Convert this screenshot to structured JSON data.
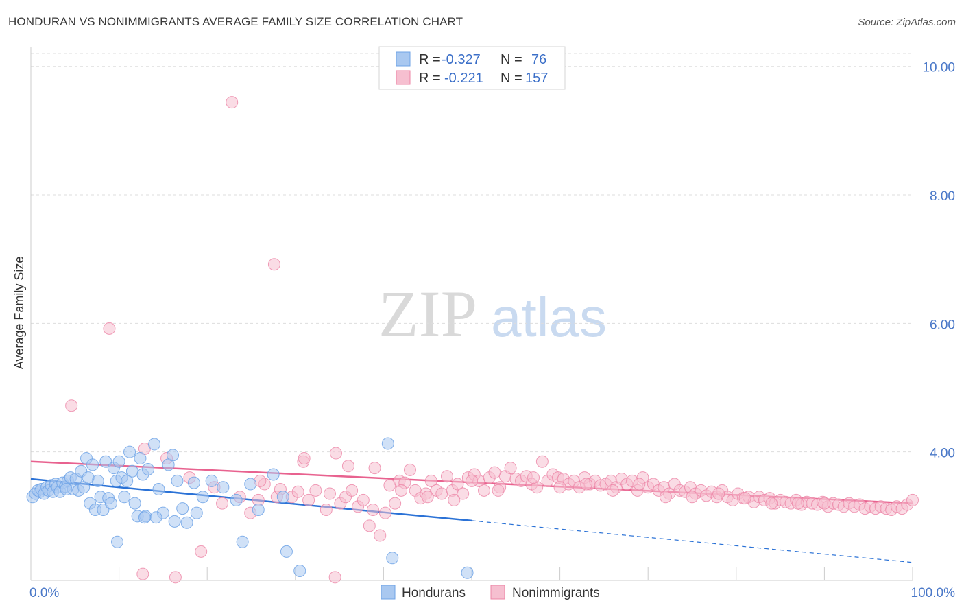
{
  "title": "HONDURAN VS NONIMMIGRANTS AVERAGE FAMILY SIZE CORRELATION CHART",
  "source": "Source: ZipAtlas.com",
  "watermark": {
    "zip": "ZIP",
    "atlas": "atlas"
  },
  "colors": {
    "blue": "#6fa3e6",
    "blue_fill": "#a9c8f0",
    "blue_line": "#2b72d6",
    "pink": "#ec85a6",
    "pink_fill": "#f6bfd0",
    "pink_line": "#e8628f"
  },
  "legend": {
    "rows": [
      {
        "r_label": "R =",
        "r_value": "-0.327",
        "n_label": "N =",
        "n_value": "76"
      },
      {
        "r_label": "R =",
        "r_value": "-0.221",
        "n_label": "N =",
        "n_value": "157"
      }
    ]
  },
  "bottom_legend": [
    "Hondurans",
    "Nonimmigrants"
  ],
  "chart_data": {
    "type": "scatter",
    "title": "HONDURAN VS NONIMMIGRANTS AVERAGE FAMILY SIZE CORRELATION CHART",
    "xlabel": "",
    "ylabel": "Average Family Size",
    "xlim": [
      0,
      100
    ],
    "ylim": [
      2.0,
      10.2
    ],
    "x_tick_labels": [
      "0.0%",
      "100.0%"
    ],
    "y_ticks": [
      4,
      6,
      8,
      10
    ],
    "y_tick_labels": [
      "4.00",
      "6.00",
      "8.00",
      "10.00"
    ],
    "legend_position": "top-center",
    "series": [
      {
        "name": "Hondurans",
        "r": -0.327,
        "n": 76,
        "trend": {
          "x0": 0,
          "y0": 3.58,
          "x1": 50,
          "y1": 2.93,
          "dashed_to_x": 100,
          "dashed_to_y": 2.28
        },
        "points": [
          [
            0.2,
            3.3
          ],
          [
            0.5,
            3.35
          ],
          [
            0.8,
            3.4
          ],
          [
            1.0,
            3.38
          ],
          [
            1.2,
            3.42
          ],
          [
            1.5,
            3.35
          ],
          [
            1.8,
            3.45
          ],
          [
            2.0,
            3.4
          ],
          [
            2.3,
            3.48
          ],
          [
            2.5,
            3.38
          ],
          [
            2.8,
            3.5
          ],
          [
            3.0,
            3.45
          ],
          [
            3.3,
            3.38
          ],
          [
            3.6,
            3.52
          ],
          [
            3.9,
            3.46
          ],
          [
            4.2,
            3.55
          ],
          [
            4.5,
            3.6
          ],
          [
            4.8,
            3.42
          ],
          [
            5.1,
            3.58
          ],
          [
            5.4,
            3.4
          ],
          [
            5.7,
            3.7
          ],
          [
            6.0,
            3.45
          ],
          [
            6.3,
            3.9
          ],
          [
            6.7,
            3.2
          ],
          [
            7.0,
            3.8
          ],
          [
            7.3,
            3.1
          ],
          [
            7.6,
            3.55
          ],
          [
            7.9,
            3.3
          ],
          [
            8.2,
            3.1
          ],
          [
            8.5,
            3.85
          ],
          [
            8.8,
            3.28
          ],
          [
            9.1,
            3.2
          ],
          [
            9.4,
            3.75
          ],
          [
            9.7,
            3.55
          ],
          [
            10.0,
            3.85
          ],
          [
            10.3,
            3.6
          ],
          [
            10.6,
            3.3
          ],
          [
            10.9,
            3.55
          ],
          [
            11.2,
            4.0
          ],
          [
            11.5,
            3.7
          ],
          [
            11.8,
            3.2
          ],
          [
            12.1,
            3.0
          ],
          [
            12.4,
            3.9
          ],
          [
            12.7,
            3.65
          ],
          [
            13.0,
            3.0
          ],
          [
            13.3,
            3.73
          ],
          [
            14.0,
            4.12
          ],
          [
            14.5,
            3.42
          ],
          [
            15.0,
            3.05
          ],
          [
            15.6,
            3.8
          ],
          [
            16.1,
            3.95
          ],
          [
            16.6,
            3.55
          ],
          [
            17.2,
            3.12
          ],
          [
            17.7,
            2.9
          ],
          [
            18.5,
            3.52
          ],
          [
            19.5,
            3.3
          ],
          [
            21.8,
            3.45
          ],
          [
            23.3,
            3.25
          ],
          [
            24.0,
            2.6
          ],
          [
            25.8,
            3.1
          ],
          [
            27.5,
            3.65
          ],
          [
            29.0,
            2.45
          ],
          [
            30.5,
            2.15
          ],
          [
            40.5,
            4.13
          ],
          [
            41.0,
            2.35
          ],
          [
            49.5,
            2.12
          ],
          [
            4.0,
            3.42
          ],
          [
            6.5,
            3.6
          ],
          [
            9.8,
            2.6
          ],
          [
            12.9,
            2.98
          ],
          [
            14.2,
            2.98
          ],
          [
            16.3,
            2.92
          ],
          [
            18.8,
            3.05
          ],
          [
            20.5,
            3.55
          ],
          [
            24.9,
            3.5
          ],
          [
            28.6,
            3.3
          ]
        ]
      },
      {
        "name": "Nonimmigrants",
        "r": -0.221,
        "n": 157,
        "trend": {
          "x0": 0,
          "y0": 3.85,
          "x1": 100,
          "y1": 3.2
        },
        "points": [
          [
            4.6,
            4.72
          ],
          [
            8.9,
            5.92
          ],
          [
            12.7,
            2.1
          ],
          [
            12.9,
            4.05
          ],
          [
            16.4,
            2.05
          ],
          [
            19.3,
            2.45
          ],
          [
            21.7,
            3.2
          ],
          [
            22.8,
            9.44
          ],
          [
            23.7,
            3.3
          ],
          [
            24.9,
            3.05
          ],
          [
            25.8,
            3.25
          ],
          [
            26.5,
            3.5
          ],
          [
            27.6,
            6.92
          ],
          [
            27.9,
            3.3
          ],
          [
            28.3,
            3.42
          ],
          [
            29.6,
            3.3
          ],
          [
            30.3,
            3.38
          ],
          [
            30.9,
            3.85
          ],
          [
            31.5,
            3.25
          ],
          [
            32.3,
            3.4
          ],
          [
            33.5,
            3.1
          ],
          [
            33.9,
            3.35
          ],
          [
            34.5,
            2.05
          ],
          [
            34.6,
            3.98
          ],
          [
            35.1,
            3.2
          ],
          [
            35.7,
            3.3
          ],
          [
            36.4,
            3.4
          ],
          [
            37.1,
            3.15
          ],
          [
            37.7,
            3.25
          ],
          [
            38.4,
            2.85
          ],
          [
            39.0,
            3.75
          ],
          [
            39.6,
            2.7
          ],
          [
            40.2,
            3.05
          ],
          [
            40.7,
            3.48
          ],
          [
            41.3,
            3.2
          ],
          [
            41.8,
            3.55
          ],
          [
            42.4,
            3.52
          ],
          [
            43.0,
            3.72
          ],
          [
            43.6,
            3.4
          ],
          [
            44.2,
            3.28
          ],
          [
            44.8,
            3.35
          ],
          [
            45.4,
            3.55
          ],
          [
            46.0,
            3.4
          ],
          [
            46.6,
            3.35
          ],
          [
            47.2,
            3.62
          ],
          [
            47.8,
            3.4
          ],
          [
            48.4,
            3.5
          ],
          [
            49.0,
            3.35
          ],
          [
            49.6,
            3.6
          ],
          [
            50.3,
            3.65
          ],
          [
            50.8,
            3.55
          ],
          [
            51.4,
            3.4
          ],
          [
            52.0,
            3.6
          ],
          [
            52.6,
            3.68
          ],
          [
            53.2,
            3.45
          ],
          [
            53.8,
            3.62
          ],
          [
            54.4,
            3.75
          ],
          [
            55.0,
            3.58
          ],
          [
            55.6,
            3.55
          ],
          [
            56.2,
            3.62
          ],
          [
            56.8,
            3.5
          ],
          [
            57.4,
            3.45
          ],
          [
            58.0,
            3.85
          ],
          [
            58.6,
            3.55
          ],
          [
            59.2,
            3.65
          ],
          [
            59.8,
            3.6
          ],
          [
            60.4,
            3.58
          ],
          [
            61.0,
            3.5
          ],
          [
            61.6,
            3.55
          ],
          [
            62.2,
            3.45
          ],
          [
            62.8,
            3.6
          ],
          [
            63.4,
            3.5
          ],
          [
            64.0,
            3.55
          ],
          [
            64.6,
            3.48
          ],
          [
            65.2,
            3.5
          ],
          [
            65.8,
            3.55
          ],
          [
            66.4,
            3.45
          ],
          [
            67.0,
            3.58
          ],
          [
            67.6,
            3.5
          ],
          [
            68.2,
            3.55
          ],
          [
            68.8,
            3.4
          ],
          [
            69.4,
            3.6
          ],
          [
            70.0,
            3.45
          ],
          [
            70.6,
            3.5
          ],
          [
            71.2,
            3.4
          ],
          [
            71.8,
            3.45
          ],
          [
            72.4,
            3.35
          ],
          [
            73.0,
            3.5
          ],
          [
            73.6,
            3.4
          ],
          [
            74.2,
            3.38
          ],
          [
            74.8,
            3.45
          ],
          [
            75.4,
            3.35
          ],
          [
            76.0,
            3.4
          ],
          [
            76.6,
            3.32
          ],
          [
            77.2,
            3.38
          ],
          [
            77.8,
            3.3
          ],
          [
            78.4,
            3.4
          ],
          [
            79.0,
            3.3
          ],
          [
            79.6,
            3.25
          ],
          [
            80.2,
            3.35
          ],
          [
            80.8,
            3.28
          ],
          [
            81.4,
            3.3
          ],
          [
            82.0,
            3.22
          ],
          [
            82.6,
            3.3
          ],
          [
            83.2,
            3.25
          ],
          [
            83.8,
            3.28
          ],
          [
            84.4,
            3.2
          ],
          [
            85.0,
            3.25
          ],
          [
            85.6,
            3.22
          ],
          [
            86.2,
            3.2
          ],
          [
            86.8,
            3.25
          ],
          [
            87.4,
            3.18
          ],
          [
            88.0,
            3.22
          ],
          [
            88.6,
            3.2
          ],
          [
            89.2,
            3.18
          ],
          [
            89.8,
            3.22
          ],
          [
            90.4,
            3.15
          ],
          [
            91.0,
            3.2
          ],
          [
            91.6,
            3.18
          ],
          [
            92.2,
            3.15
          ],
          [
            92.8,
            3.2
          ],
          [
            93.4,
            3.15
          ],
          [
            94.0,
            3.18
          ],
          [
            94.6,
            3.12
          ],
          [
            95.2,
            3.15
          ],
          [
            95.8,
            3.12
          ],
          [
            96.4,
            3.15
          ],
          [
            97.0,
            3.12
          ],
          [
            97.6,
            3.1
          ],
          [
            98.2,
            3.15
          ],
          [
            98.8,
            3.12
          ],
          [
            99.4,
            3.18
          ],
          [
            100.0,
            3.25
          ],
          [
            15.4,
            3.9
          ],
          [
            18.0,
            3.6
          ],
          [
            20.8,
            3.45
          ],
          [
            26.0,
            3.55
          ],
          [
            31.0,
            3.9
          ],
          [
            36.0,
            3.78
          ],
          [
            38.8,
            3.1
          ],
          [
            42.0,
            3.4
          ],
          [
            45.0,
            3.3
          ],
          [
            48.0,
            3.25
          ],
          [
            50.0,
            3.55
          ],
          [
            53.0,
            3.4
          ],
          [
            57.0,
            3.6
          ],
          [
            60.0,
            3.45
          ],
          [
            63.0,
            3.5
          ],
          [
            66.0,
            3.4
          ],
          [
            69.0,
            3.5
          ],
          [
            72.0,
            3.3
          ],
          [
            75.0,
            3.3
          ],
          [
            78.0,
            3.35
          ],
          [
            81.0,
            3.28
          ],
          [
            84.0,
            3.2
          ],
          [
            87.0,
            3.2
          ],
          [
            90.0,
            3.2
          ]
        ]
      }
    ]
  }
}
